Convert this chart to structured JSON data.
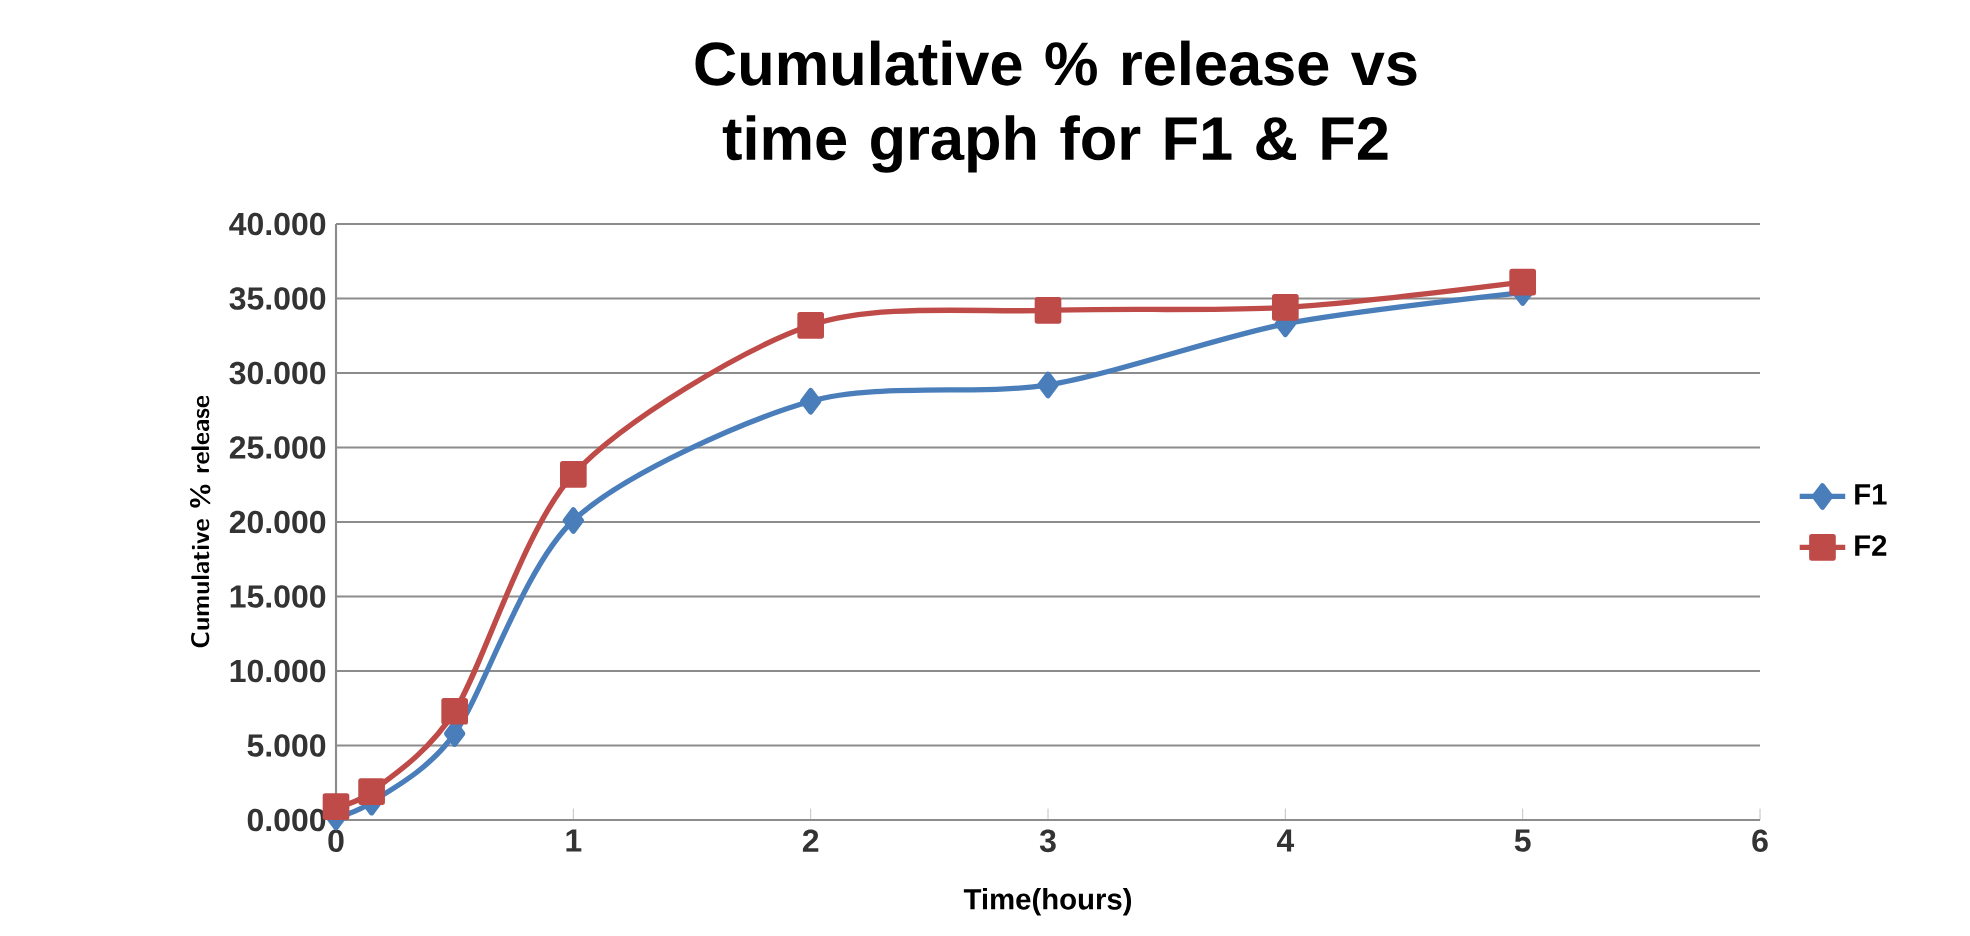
{
  "chart_data": {
    "type": "line",
    "title": "Cumulative % release vs time graph for F1 & F2",
    "xlabel": "Time(hours)",
    "ylabel": "Cumulative % release",
    "x": [
      0,
      0.15,
      0.5,
      1,
      2,
      3,
      4,
      5
    ],
    "series": [
      {
        "name": "F1",
        "color": "#4a7ebb",
        "marker": "diamond",
        "values": [
          0.2,
          1.2,
          5.8,
          20.1,
          28.1,
          29.2,
          33.3,
          35.4
        ]
      },
      {
        "name": "F2",
        "color": "#be4b48",
        "marker": "square",
        "values": [
          0.9,
          1.9,
          7.3,
          23.2,
          33.2,
          34.2,
          34.4,
          36.1
        ]
      }
    ],
    "xlim": [
      0,
      6
    ],
    "xticks": [
      0,
      1,
      2,
      3,
      4,
      5,
      6
    ],
    "ylim": [
      0,
      40
    ],
    "yticks": [
      {
        "value": 0,
        "label": "0.000"
      },
      {
        "value": 5,
        "label": "5.000"
      },
      {
        "value": 10,
        "label": "10.000"
      },
      {
        "value": 15,
        "label": "15.000"
      },
      {
        "value": 20,
        "label": "20.000"
      },
      {
        "value": 25,
        "label": "25.000"
      },
      {
        "value": 30,
        "label": "30.000"
      },
      {
        "value": 35,
        "label": "35.000"
      },
      {
        "value": 40,
        "label": "40.000"
      }
    ],
    "grid": "y",
    "legend": "right"
  }
}
